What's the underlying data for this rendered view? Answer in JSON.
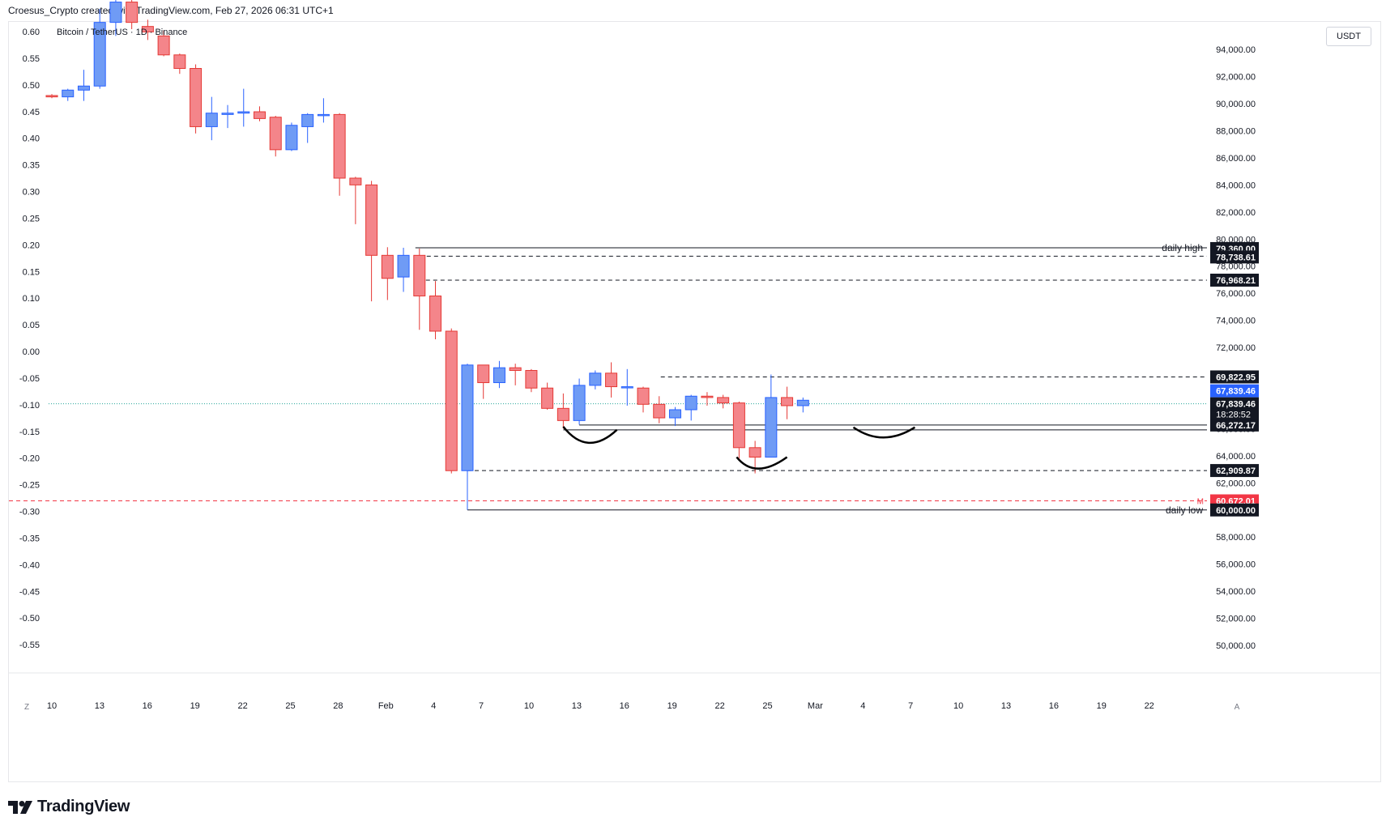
{
  "header": {
    "credit": "Croesus_Crypto created with TradingView.com, Feb 27, 2026 06:31 UTC+1"
  },
  "legend": {
    "symbol": "Bitcoin / TetherUS · 1D · Binance"
  },
  "currency_button": "USDT",
  "brand": {
    "name": "TradingView"
  },
  "corner_buttons": {
    "left": "Z",
    "right": "A"
  },
  "colors": {
    "up": "#6f9bf5",
    "down": "#f4858a",
    "up_border": "#2962ff",
    "down_border": "#e53935",
    "axis_text": "#131722",
    "marker_red": "#f23645",
    "marker_blue": "#2962ff",
    "dotted_price": "#26a69a"
  },
  "chart_data": {
    "type": "candlestick",
    "right_axis": {
      "label": "USDT",
      "ticks": [
        "50,000.00",
        "52,000.00",
        "54,000.00",
        "56,000.00",
        "58,000.00",
        "60,000.00",
        "62,000.00",
        "64,000.00",
        "66,000.00",
        "68,000.00",
        "70,000.00",
        "72,000.00",
        "74,000.00",
        "76,000.00",
        "78,000.00",
        "80,000.00",
        "82,000.00",
        "84,000.00",
        "86,000.00",
        "88,000.00",
        "90,000.00",
        "92,000.00",
        "94,000.00"
      ],
      "ylim": [
        48900,
        95500
      ]
    },
    "left_axis": {
      "ticks": [
        "0.60",
        "0.55",
        "0.50",
        "0.45",
        "0.40",
        "0.35",
        "0.30",
        "0.25",
        "0.20",
        "0.15",
        "0.10",
        "0.05",
        "0.00",
        "-0.05",
        "-0.10",
        "-0.15",
        "-0.20",
        "-0.25",
        "-0.30",
        "-0.35",
        "-0.40",
        "-0.45",
        "-0.50",
        "-0.55"
      ]
    },
    "x_axis": {
      "ticks": [
        "10",
        "13",
        "16",
        "19",
        "22",
        "25",
        "28",
        "Feb",
        "4",
        "7",
        "10",
        "13",
        "16",
        "19",
        "22",
        "25",
        "Mar",
        "4",
        "7",
        "10",
        "13",
        "16",
        "19",
        "22"
      ]
    },
    "candles": [
      {
        "o": 90600,
        "h": 90700,
        "l": 90400,
        "c": 90500
      },
      {
        "o": 90500,
        "h": 91100,
        "l": 90200,
        "c": 91000
      },
      {
        "o": 91000,
        "h": 92500,
        "l": 90200,
        "c": 91300
      },
      {
        "o": 91300,
        "h": 97000,
        "l": 91100,
        "c": 96000
      },
      {
        "o": 96000,
        "h": 97800,
        "l": 95000,
        "c": 97500
      },
      {
        "o": 97500,
        "h": 97900,
        "l": 95500,
        "c": 96000
      },
      {
        "o": 95700,
        "h": 96200,
        "l": 94700,
        "c": 95300
      },
      {
        "o": 95000,
        "h": 95400,
        "l": 93500,
        "c": 93600
      },
      {
        "o": 93600,
        "h": 93700,
        "l": 92200,
        "c": 92600
      },
      {
        "o": 92600,
        "h": 92900,
        "l": 87800,
        "c": 88300
      },
      {
        "o": 88300,
        "h": 90500,
        "l": 87300,
        "c": 89300
      },
      {
        "o": 89200,
        "h": 89900,
        "l": 88200,
        "c": 89300
      },
      {
        "o": 89300,
        "h": 91100,
        "l": 88300,
        "c": 89400
      },
      {
        "o": 89400,
        "h": 89800,
        "l": 88700,
        "c": 88900
      },
      {
        "o": 89000,
        "h": 89100,
        "l": 86100,
        "c": 86600
      },
      {
        "o": 86600,
        "h": 88600,
        "l": 86500,
        "c": 88400
      },
      {
        "o": 88300,
        "h": 89300,
        "l": 87100,
        "c": 89200
      },
      {
        "o": 89200,
        "h": 90400,
        "l": 88600,
        "c": 89200
      },
      {
        "o": 89200,
        "h": 89300,
        "l": 83200,
        "c": 84500
      },
      {
        "o": 84500,
        "h": 84600,
        "l": 81100,
        "c": 84000
      },
      {
        "o": 84000,
        "h": 84300,
        "l": 75400,
        "c": 78800
      },
      {
        "o": 78800,
        "h": 79400,
        "l": 75500,
        "c": 77100
      },
      {
        "o": 77200,
        "h": 79360,
        "l": 76100,
        "c": 78800
      },
      {
        "o": 78800,
        "h": 79300,
        "l": 73300,
        "c": 75800
      },
      {
        "o": 75800,
        "h": 76900,
        "l": 72600,
        "c": 73200
      },
      {
        "o": 73200,
        "h": 73400,
        "l": 62700,
        "c": 62900
      },
      {
        "o": 62900,
        "h": 70800,
        "l": 60000,
        "c": 70700
      },
      {
        "o": 70700,
        "h": 70700,
        "l": 68200,
        "c": 69400
      },
      {
        "o": 69400,
        "h": 71000,
        "l": 69000,
        "c": 70500
      },
      {
        "o": 70500,
        "h": 70800,
        "l": 69200,
        "c": 70300
      },
      {
        "o": 70300,
        "h": 70400,
        "l": 68700,
        "c": 69000
      },
      {
        "o": 69000,
        "h": 69400,
        "l": 67400,
        "c": 67500
      },
      {
        "o": 67500,
        "h": 68600,
        "l": 66000,
        "c": 66600
      },
      {
        "o": 66600,
        "h": 69700,
        "l": 66300,
        "c": 69200
      },
      {
        "o": 69200,
        "h": 70300,
        "l": 68900,
        "c": 70100
      },
      {
        "o": 70100,
        "h": 70900,
        "l": 68300,
        "c": 69100
      },
      {
        "o": 69100,
        "h": 70400,
        "l": 67700,
        "c": 69100
      },
      {
        "o": 69000,
        "h": 69100,
        "l": 67200,
        "c": 67800
      },
      {
        "o": 67800,
        "h": 68400,
        "l": 66400,
        "c": 66800
      },
      {
        "o": 66800,
        "h": 67600,
        "l": 66200,
        "c": 67400
      },
      {
        "o": 67400,
        "h": 68500,
        "l": 66600,
        "c": 68400
      },
      {
        "o": 68400,
        "h": 68700,
        "l": 67700,
        "c": 68300
      },
      {
        "o": 68300,
        "h": 68500,
        "l": 67500,
        "c": 67900
      },
      {
        "o": 67900,
        "h": 68000,
        "l": 63800,
        "c": 64600
      },
      {
        "o": 64600,
        "h": 65100,
        "l": 62700,
        "c": 63900
      },
      {
        "o": 63900,
        "h": 70000,
        "l": 63900,
        "c": 68300
      },
      {
        "o": 68300,
        "h": 69100,
        "l": 66700,
        "c": 67700
      },
      {
        "o": 67700,
        "h": 68300,
        "l": 67200,
        "c": 68100
      }
    ],
    "levels": [
      {
        "price": 79360,
        "style": "solid",
        "label": "daily high",
        "tag": "79,360.00"
      },
      {
        "price": 78738.61,
        "style": "dashed",
        "tag": "78,738.61"
      },
      {
        "price": 76968.21,
        "style": "dashed",
        "tag": "76,968.21"
      },
      {
        "price": 69822.95,
        "style": "dashed",
        "tag": "69,822.95"
      },
      {
        "price": 66272.17,
        "style": "solid",
        "tag": "66,272.17"
      },
      {
        "price": 62909.87,
        "style": "dashed",
        "tag": "62,909.87"
      },
      {
        "price": 60672.01,
        "style": "red-dashed",
        "tag": "60,672.01",
        "marker": "M"
      },
      {
        "price": 60000,
        "style": "solid",
        "label": "daily low",
        "tag": "60,000.00"
      }
    ],
    "current_price": {
      "price": 67839.46,
      "tag": "67,839.46",
      "tag_dark": "67,839.46",
      "countdown": "18:28:52"
    },
    "annotations": [
      "arc",
      "arc",
      "arc"
    ]
  }
}
